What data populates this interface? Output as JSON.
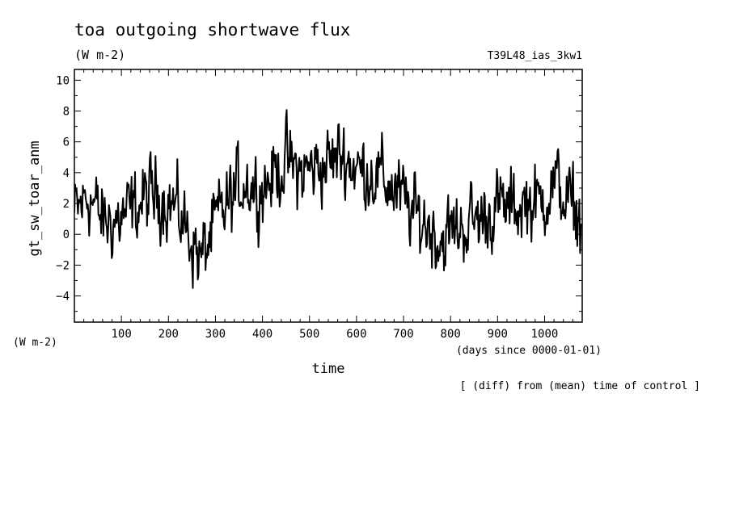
{
  "chart_data": {
    "type": "line",
    "title": "toa outgoing shortwave flux",
    "units": "(W m-2)",
    "run_label": "T39L48_ias_3kw1",
    "ylabel": "gt_sw_toar_anm",
    "y_units_label": "(W m-2)",
    "xlabel": "time",
    "x_units_label": "(days since 0000-01-01)",
    "footnote": "[ (diff) from (mean) time of control ]",
    "xlim": [
      0,
      1080
    ],
    "ylim": [
      -5.7,
      10.7
    ],
    "xticks": [
      100,
      200,
      300,
      400,
      500,
      600,
      700,
      800,
      900,
      1000
    ],
    "yticks": [
      -4,
      -2,
      0,
      2,
      4,
      6,
      8,
      10
    ],
    "grid": false,
    "series": [
      {
        "x": [
          0,
          30,
          60,
          90,
          120,
          150,
          180,
          210,
          240,
          270,
          300,
          330,
          360,
          390,
          420,
          450,
          480,
          510,
          540,
          570,
          600,
          630,
          660,
          690,
          720,
          750,
          780,
          810,
          840,
          870,
          900,
          930,
          960,
          990,
          1020,
          1050,
          1080
        ],
        "y": [
          1.2,
          2.6,
          0.8,
          0.9,
          1.4,
          2.3,
          2.7,
          1.9,
          0.3,
          -1.7,
          0.7,
          2.1,
          3.6,
          2.9,
          3.7,
          4.8,
          3.9,
          4.4,
          4.6,
          5.3,
          4.2,
          4.1,
          3.5,
          2.6,
          1.3,
          0.7,
          -0.4,
          0.3,
          0.8,
          1.1,
          1.8,
          1.6,
          2.1,
          2.0,
          3.4,
          2.1,
          0.8
        ]
      }
    ]
  }
}
